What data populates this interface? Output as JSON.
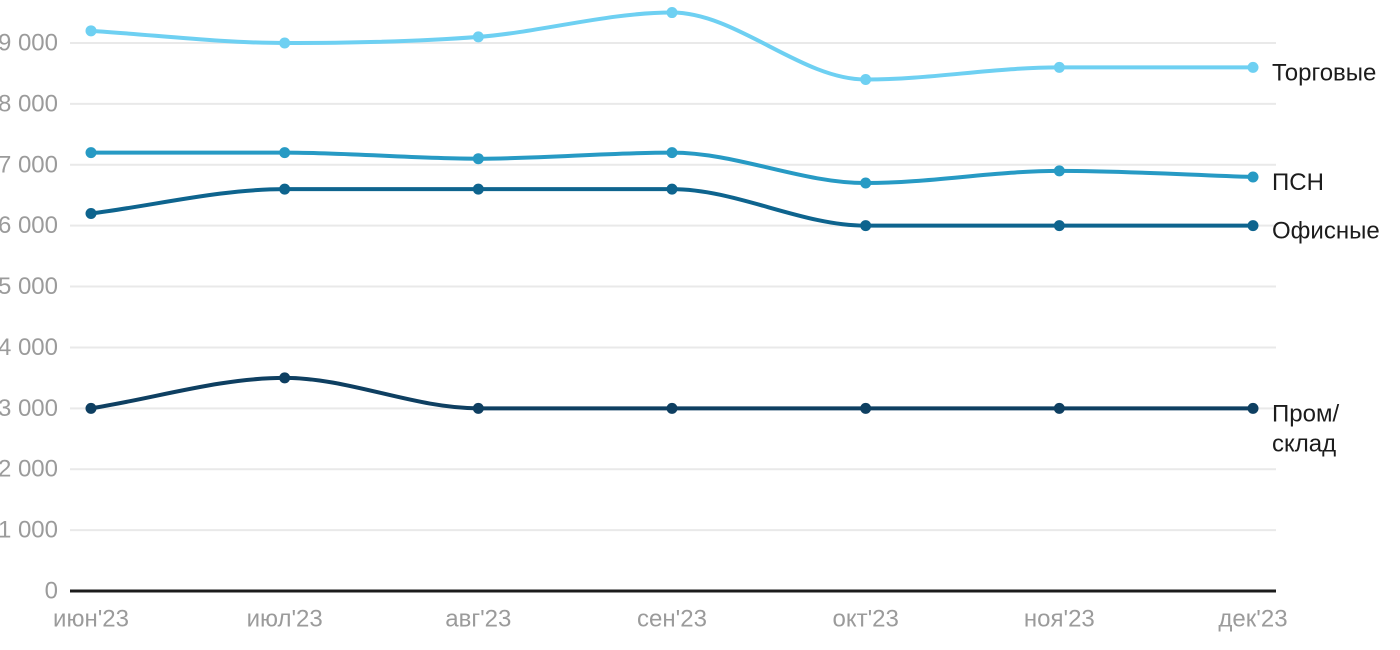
{
  "chart_data": {
    "type": "line",
    "title": "",
    "xlabel": "",
    "ylabel": "",
    "x": [
      "июн'23",
      "июл'23",
      "авг'23",
      "сен'23",
      "окт'23",
      "ноя'23",
      "дек'23"
    ],
    "series": [
      {
        "name": "Торговые",
        "label_lines": [
          "Торговые"
        ],
        "color": "#6ed0f2",
        "values": [
          9200,
          9000,
          9100,
          9500,
          8400,
          8600,
          8600
        ]
      },
      {
        "name": "ПСН",
        "label_lines": [
          "ПСН"
        ],
        "color": "#279ac4",
        "values": [
          7200,
          7200,
          7100,
          7200,
          6700,
          6900,
          6800
        ]
      },
      {
        "name": "Офисные",
        "label_lines": [
          "Офисные"
        ],
        "color": "#0e648e",
        "values": [
          6200,
          6600,
          6600,
          6600,
          6000,
          6000,
          6000
        ]
      },
      {
        "name": "Пром/склад",
        "label_lines": [
          "Пром/",
          "склад"
        ],
        "color": "#0e3f61",
        "values": [
          3000,
          3500,
          3000,
          3000,
          3000,
          3000,
          3000
        ]
      }
    ],
    "ylim": [
      0,
      9500
    ],
    "yticks": [
      0,
      1000,
      2000,
      3000,
      4000,
      5000,
      6000,
      7000,
      8000,
      9000
    ],
    "ytick_labels": [
      "0",
      "1 000",
      "2 000",
      "3 000",
      "4 000",
      "5 000",
      "6 000",
      "7 000",
      "8 000",
      "9 000"
    ],
    "grid": true,
    "legend_position": "right-of-line-end",
    "style": {
      "grid_color": "#e9e9e9",
      "axis_color": "#1c1c1c",
      "tick_text_color": "#9b9b9b",
      "legend_text_color": "#1c1c1c",
      "background": "#ffffff"
    }
  }
}
